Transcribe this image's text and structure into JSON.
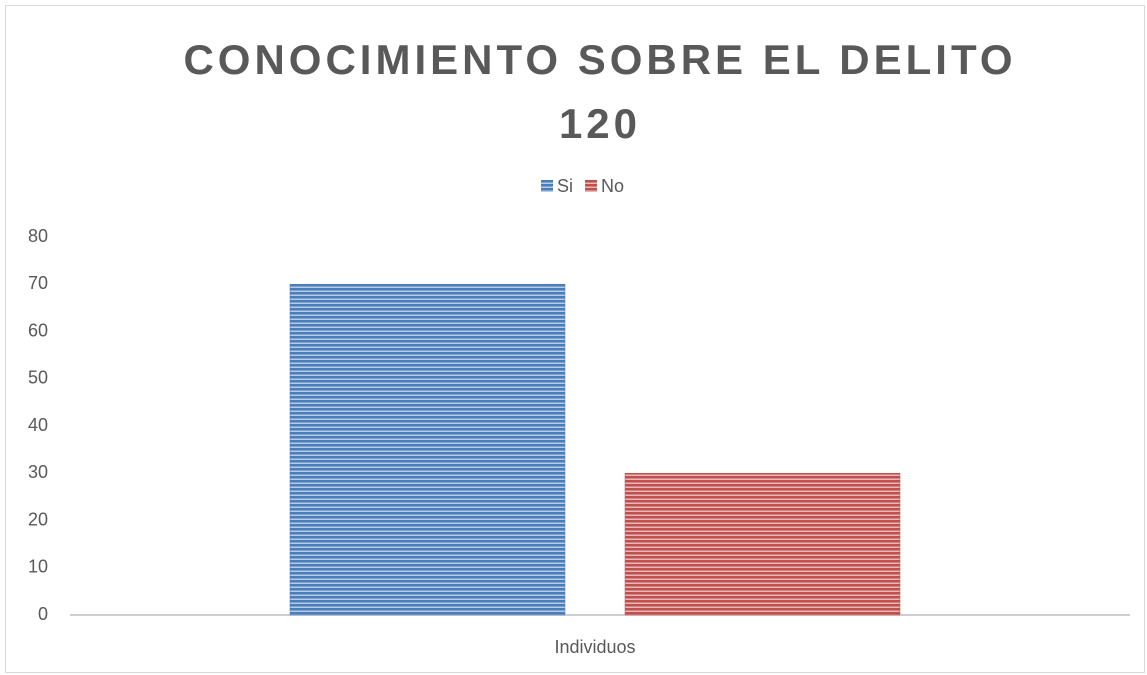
{
  "chart_data": {
    "type": "bar",
    "title": "CONOCIMIENTO SOBRE EL DELITO 120",
    "categories": [
      "Individuos"
    ],
    "series": [
      {
        "name": "Si",
        "color": "#4a7ebb",
        "values": [
          70
        ]
      },
      {
        "name": "No",
        "color": "#c0504d",
        "values": [
          30
        ]
      }
    ],
    "ylim": [
      0,
      80
    ],
    "yticks": [
      0,
      10,
      20,
      30,
      40,
      50,
      60,
      70,
      80
    ],
    "grid": false,
    "legend": "top"
  }
}
